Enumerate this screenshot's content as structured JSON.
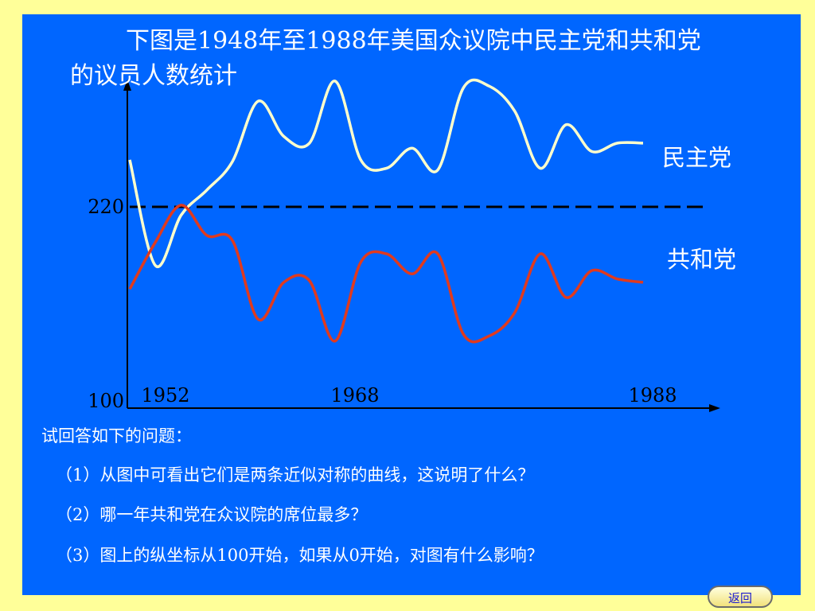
{
  "title_line1": "下图是1948年至1988年美国众议院中民主党和共和党",
  "title_line2": "的议员人数统计",
  "questions": {
    "intro": "试回答如下的问题：",
    "q1": "（1）从图中可看出它们是两条近似对称的曲线，这说明了什么？",
    "q2": "（2）哪一年共和党在众议院的席位最多？",
    "q3": "（3）图上的纵坐标从100开始，如果从0开始，对图有什么影响？"
  },
  "back_button": "返回",
  "colors": {
    "background": "#ffff99",
    "slide": "#0066ff",
    "democrat": "#ffffcc",
    "republican": "#e03a1e",
    "reference_line": "#000000"
  },
  "chart_data": {
    "type": "line",
    "x_start_label": "",
    "x_tick_labels": [
      "1952",
      "1968",
      "1988"
    ],
    "y_tick_labels": [
      "100",
      "220"
    ],
    "ylim": [
      100,
      300
    ],
    "reference_line": {
      "y": 220,
      "style": "dashed"
    },
    "series": [
      {
        "name": "民主党",
        "x": [
          1948,
          1950,
          1952,
          1954,
          1956,
          1958,
          1960,
          1962,
          1964,
          1966,
          1968,
          1970,
          1972,
          1974,
          1976,
          1978,
          1980,
          1982,
          1984,
          1986,
          1988
        ],
        "values": [
          248,
          185,
          215,
          230,
          247,
          283,
          262,
          258,
          295,
          248,
          243,
          255,
          242,
          291,
          292,
          277,
          243,
          269,
          253,
          258,
          258
        ]
      },
      {
        "name": "共和党",
        "x": [
          1948,
          1950,
          1952,
          1954,
          1956,
          1958,
          1960,
          1962,
          1964,
          1966,
          1968,
          1970,
          1972,
          1974,
          1976,
          1978,
          1980,
          1982,
          1984,
          1986,
          1988
        ],
        "values": [
          171,
          199,
          221,
          203,
          200,
          153,
          175,
          176,
          140,
          187,
          192,
          180,
          192,
          144,
          143,
          157,
          192,
          166,
          182,
          177,
          175
        ]
      }
    ]
  }
}
